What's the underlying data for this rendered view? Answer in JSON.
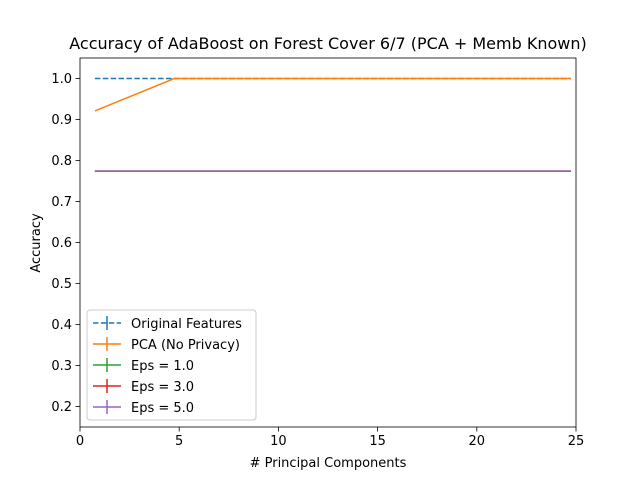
{
  "chart_data": {
    "type": "line",
    "title": "Accuracy of AdaBoost on Forest Cover 6/7 (PCA + Memb Known)",
    "xlabel": "# Principal Components",
    "ylabel": "Accuracy",
    "xlim": [
      0,
      25
    ],
    "ylim": [
      0.15,
      1.05
    ],
    "xticks": [
      0,
      5,
      10,
      15,
      20,
      25
    ],
    "xtick_labels": [
      "0",
      "5",
      "10",
      "15",
      "20",
      "25"
    ],
    "yticks": [
      0.2,
      0.3,
      0.4,
      0.5,
      0.6,
      0.7,
      0.8,
      0.9,
      1.0
    ],
    "ytick_labels": [
      "0.2",
      "0.3",
      "0.4",
      "0.5",
      "0.6",
      "0.7",
      "0.8",
      "0.9",
      "1.0"
    ],
    "grid": false,
    "legend_position": "lower-left",
    "series": [
      {
        "name": "Original Features",
        "color": "#1f77b4",
        "dashed": true,
        "x": [
          0.75,
          4.75,
          8.75,
          12.75,
          16.75,
          20.75,
          24.75
        ],
        "y": [
          1.0,
          1.0,
          1.0,
          1.0,
          1.0,
          1.0,
          1.0
        ]
      },
      {
        "name": "PCA (No Privacy)",
        "color": "#ff7f0e",
        "dashed": false,
        "x": [
          0.75,
          4.75,
          8.75,
          12.75,
          16.75,
          20.75,
          24.75
        ],
        "y": [
          0.921,
          1.0,
          1.0,
          1.0,
          1.0,
          1.0,
          1.0
        ]
      },
      {
        "name": "Eps = 1.0",
        "color": "#2ca02c",
        "dashed": false,
        "x": [
          0.75,
          4.75,
          8.75,
          12.75,
          16.75,
          20.75,
          24.75
        ],
        "y": [
          0.774,
          0.774,
          0.774,
          0.774,
          0.774,
          0.774,
          0.774
        ]
      },
      {
        "name": "Eps = 3.0",
        "color": "#d62728",
        "dashed": false,
        "x": [
          0.75,
          4.75,
          8.75,
          12.75,
          16.75,
          20.75,
          24.75
        ],
        "y": [
          0.774,
          0.774,
          0.774,
          0.774,
          0.774,
          0.774,
          0.774
        ]
      },
      {
        "name": "Eps = 5.0",
        "color": "#9467bd",
        "dashed": false,
        "x": [
          0.75,
          4.75,
          8.75,
          12.75,
          16.75,
          20.75,
          24.75
        ],
        "y": [
          0.774,
          0.774,
          0.774,
          0.774,
          0.774,
          0.774,
          0.774
        ]
      }
    ]
  }
}
